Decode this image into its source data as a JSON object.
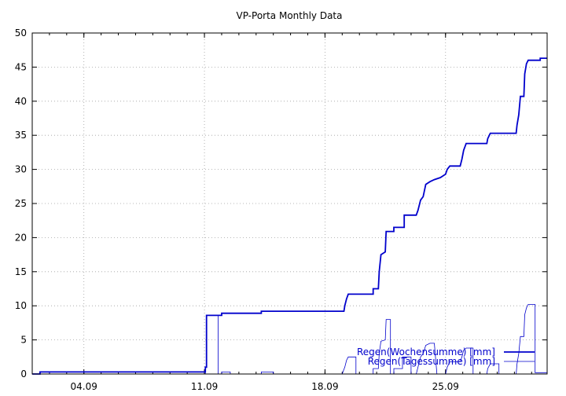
{
  "chart_data": {
    "type": "line",
    "title": "VP-Porta Monthly Data",
    "xlabel": "",
    "ylabel": "",
    "xlim": [
      0,
      29.9
    ],
    "ylim": [
      0,
      50
    ],
    "x_unit": "days",
    "y_ticks": [
      0,
      5,
      10,
      15,
      20,
      25,
      30,
      35,
      40,
      45,
      50
    ],
    "x_ticks": [
      {
        "x": 3,
        "label": "04.09"
      },
      {
        "x": 10,
        "label": "11.09"
      },
      {
        "x": 17,
        "label": "18.09"
      },
      {
        "x": 24,
        "label": "25.09"
      }
    ],
    "grid": true,
    "legend_position": "bottom-right",
    "series": [
      {
        "name": "Regen(Wochensumme) [mm]",
        "color": "#0000cc",
        "stroke_width": 1.8,
        "points": [
          [
            0,
            0
          ],
          [
            0.45,
            0
          ],
          [
            0.45,
            0.3
          ],
          [
            10.05,
            0.3
          ],
          [
            10.05,
            1
          ],
          [
            10.12,
            1
          ],
          [
            10.12,
            8.6
          ],
          [
            11,
            8.6
          ],
          [
            11,
            8.9
          ],
          [
            13.3,
            8.9
          ],
          [
            13.3,
            9.2
          ],
          [
            18.1,
            9.2
          ],
          [
            18.15,
            10
          ],
          [
            18.25,
            11
          ],
          [
            18.35,
            11.7
          ],
          [
            19.8,
            11.7
          ],
          [
            19.8,
            12.5
          ],
          [
            20.1,
            12.5
          ],
          [
            20.15,
            15
          ],
          [
            20.25,
            17.5
          ],
          [
            20.5,
            17.9
          ],
          [
            20.55,
            20.9
          ],
          [
            21,
            20.9
          ],
          [
            21,
            21.5
          ],
          [
            21.6,
            21.5
          ],
          [
            21.6,
            23.3
          ],
          [
            22.3,
            23.3
          ],
          [
            22.4,
            24
          ],
          [
            22.55,
            25.5
          ],
          [
            22.7,
            26
          ],
          [
            22.85,
            27.8
          ],
          [
            23.1,
            28.2
          ],
          [
            23.35,
            28.5
          ],
          [
            23.7,
            28.8
          ],
          [
            24,
            29.3
          ],
          [
            24.1,
            30
          ],
          [
            24.25,
            30.5
          ],
          [
            24.85,
            30.5
          ],
          [
            24.95,
            31.5
          ],
          [
            25.05,
            32.8
          ],
          [
            25.2,
            33.8
          ],
          [
            26.4,
            33.8
          ],
          [
            26.45,
            34.5
          ],
          [
            26.6,
            35.3
          ],
          [
            28.1,
            35.3
          ],
          [
            28.15,
            36.5
          ],
          [
            28.25,
            38
          ],
          [
            28.35,
            40.7
          ],
          [
            28.55,
            40.7
          ],
          [
            28.6,
            44
          ],
          [
            28.7,
            45.5
          ],
          [
            28.8,
            46
          ],
          [
            29.5,
            46
          ],
          [
            29.5,
            46.3
          ],
          [
            29.9,
            46.3
          ]
        ]
      },
      {
        "name": "Regen(Tagessumme) [mm]",
        "color": "#0000cc",
        "stroke_width": 0.8,
        "points": [
          [
            0,
            0
          ],
          [
            0.45,
            0
          ],
          [
            0.45,
            0.3
          ],
          [
            1,
            0.3
          ],
          [
            1,
            0
          ],
          [
            10.05,
            0
          ],
          [
            10.05,
            1
          ],
          [
            10.12,
            1
          ],
          [
            10.12,
            8.6
          ],
          [
            10.8,
            8.6
          ],
          [
            10.8,
            0
          ],
          [
            11,
            0
          ],
          [
            11,
            0.3
          ],
          [
            11.5,
            0.3
          ],
          [
            11.5,
            0
          ],
          [
            13.3,
            0
          ],
          [
            13.3,
            0.3
          ],
          [
            14,
            0.3
          ],
          [
            14,
            0
          ],
          [
            18,
            0
          ],
          [
            18.15,
            1
          ],
          [
            18.25,
            2
          ],
          [
            18.35,
            2.5
          ],
          [
            18.8,
            2.5
          ],
          [
            18.8,
            0
          ],
          [
            19.8,
            0
          ],
          [
            19.8,
            0.8
          ],
          [
            20.1,
            0.8
          ],
          [
            20.15,
            3
          ],
          [
            20.25,
            4.8
          ],
          [
            20.5,
            5
          ],
          [
            20.55,
            8
          ],
          [
            20.8,
            8
          ],
          [
            20.8,
            0
          ],
          [
            21,
            0
          ],
          [
            21,
            0.8
          ],
          [
            21.5,
            0.8
          ],
          [
            21.5,
            2.5
          ],
          [
            22,
            2.5
          ],
          [
            22,
            0
          ],
          [
            22.3,
            0
          ],
          [
            22.4,
            1
          ],
          [
            22.55,
            2.5
          ],
          [
            22.7,
            3
          ],
          [
            22.85,
            4.2
          ],
          [
            23.1,
            4.5
          ],
          [
            23.35,
            4.5
          ],
          [
            23.5,
            0
          ],
          [
            24,
            0
          ],
          [
            24.1,
            1
          ],
          [
            24.25,
            1.8
          ],
          [
            24.85,
            1.8
          ],
          [
            24.95,
            2.5
          ],
          [
            25.05,
            3.5
          ],
          [
            25.2,
            3.8
          ],
          [
            25.6,
            3.8
          ],
          [
            25.6,
            0
          ],
          [
            26.4,
            0
          ],
          [
            26.45,
            0.8
          ],
          [
            26.6,
            1.5
          ],
          [
            27.1,
            1.5
          ],
          [
            27.1,
            0
          ],
          [
            28.1,
            0
          ],
          [
            28.15,
            1.5
          ],
          [
            28.25,
            3
          ],
          [
            28.35,
            5.5
          ],
          [
            28.55,
            5.5
          ],
          [
            28.6,
            8.7
          ],
          [
            28.7,
            9.7
          ],
          [
            28.8,
            10.2
          ],
          [
            29.2,
            10.2
          ],
          [
            29.2,
            0.2
          ],
          [
            29.9,
            0.2
          ]
        ]
      }
    ]
  }
}
